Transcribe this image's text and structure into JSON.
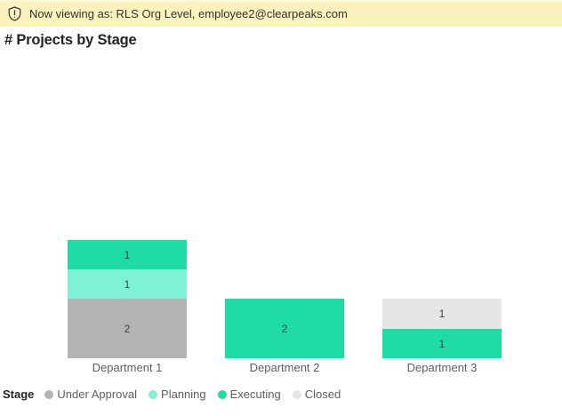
{
  "banner": {
    "icon": "shield-exclamation-icon",
    "text": "Now viewing as: RLS Org Level, employee2@clearpeaks.com",
    "background": "#fbf3be",
    "text_color": "#323130"
  },
  "report": {
    "title": "# Projects by Stage"
  },
  "chart_data": {
    "type": "bar",
    "stacked": true,
    "title": "# Projects by Stage",
    "categories": [
      "Department 1",
      "Department 2",
      "Department 3"
    ],
    "series": [
      {
        "name": "Under Approval",
        "color": "#b3b3b3",
        "values": [
          2,
          0,
          0
        ]
      },
      {
        "name": "Planning",
        "color": "#7ff2d4",
        "values": [
          1,
          0,
          0
        ]
      },
      {
        "name": "Executing",
        "color": "#1edca4",
        "values": [
          1,
          2,
          1
        ]
      },
      {
        "name": "Closed",
        "color": "#e6e6e6",
        "values": [
          0,
          0,
          1
        ]
      }
    ],
    "data_labels": true,
    "y_axis_visible": false,
    "grid": false,
    "xlabel": "",
    "ylabel": "",
    "legend": {
      "title": "Stage",
      "position": "bottom",
      "items": [
        "Under Approval",
        "Planning",
        "Executing",
        "Closed"
      ]
    }
  }
}
